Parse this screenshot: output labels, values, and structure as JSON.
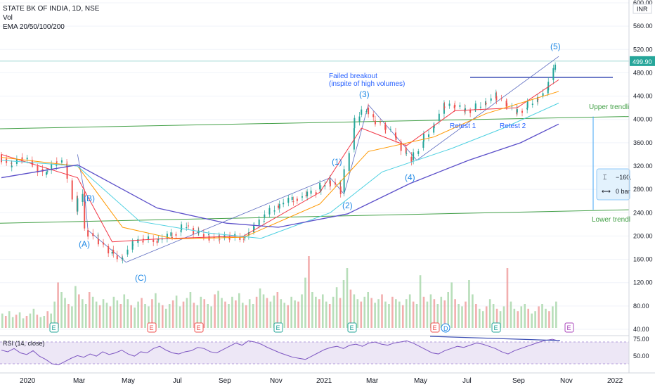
{
  "legend": {
    "title": "STATE BK OF INDIA, 1D, NSE",
    "vol": "Vol",
    "ema": "EMA 20/50/100/200"
  },
  "currency": "INR",
  "rsi_label": "RSI (14, close)",
  "measure_box": {
    "value": "−160.",
    "bars": "0 bar"
  },
  "chart_data": {
    "type": "candlestick",
    "ylim": [
      30,
      608
    ],
    "price_ticks": [
      40,
      80,
      120,
      160,
      200,
      240,
      280,
      320,
      360,
      400,
      440,
      480,
      520,
      560,
      600
    ],
    "price_tick_labels": [
      "40.00",
      "80.00",
      "120.00",
      "160.00",
      "200.00",
      "240.00",
      "280.00",
      "320.00",
      "360.00",
      "400.00",
      "440.00",
      "480.00",
      "520.00",
      "560.00",
      "600.00"
    ],
    "last_price": "499.90",
    "rsi_ticks": [
      "75.00",
      "50.00"
    ],
    "x_ticks": [
      "2020",
      "Mar",
      "May",
      "Jul",
      "Sep",
      "Nov",
      "2021",
      "Mar",
      "May",
      "Jul",
      "Sep",
      "Nov",
      "2022"
    ],
    "close_series": [
      {
        "t": 0,
        "v": 340
      },
      {
        "t": 3,
        "v": 318
      },
      {
        "t": 6,
        "v": 335
      },
      {
        "t": 9,
        "v": 325
      },
      {
        "t": 13,
        "v": 305
      },
      {
        "t": 16,
        "v": 328
      },
      {
        "t": 19,
        "v": 322
      },
      {
        "t": 22,
        "v": 242
      },
      {
        "t": 24,
        "v": 275
      },
      {
        "t": 25,
        "v": 210
      },
      {
        "t": 28,
        "v": 195
      },
      {
        "t": 32,
        "v": 170
      },
      {
        "t": 35,
        "v": 160
      },
      {
        "t": 38,
        "v": 185
      },
      {
        "t": 41,
        "v": 195
      },
      {
        "t": 45,
        "v": 192
      },
      {
        "t": 49,
        "v": 200
      },
      {
        "t": 52,
        "v": 210
      },
      {
        "t": 54,
        "v": 218
      },
      {
        "t": 57,
        "v": 205
      },
      {
        "t": 60,
        "v": 200
      },
      {
        "t": 63,
        "v": 195
      },
      {
        "t": 66,
        "v": 200
      },
      {
        "t": 70,
        "v": 195
      },
      {
        "t": 73,
        "v": 212
      },
      {
        "t": 76,
        "v": 232
      },
      {
        "t": 80,
        "v": 252
      },
      {
        "t": 84,
        "v": 262
      },
      {
        "t": 88,
        "v": 270
      },
      {
        "t": 92,
        "v": 280
      },
      {
        "t": 95,
        "v": 295
      },
      {
        "t": 98,
        "v": 285
      },
      {
        "t": 99,
        "v": 275
      },
      {
        "t": 102,
        "v": 385
      },
      {
        "t": 104,
        "v": 408
      },
      {
        "t": 106,
        "v": 420
      },
      {
        "t": 108,
        "v": 398
      },
      {
        "t": 111,
        "v": 388
      },
      {
        "t": 114,
        "v": 372
      },
      {
        "t": 117,
        "v": 342
      },
      {
        "t": 119,
        "v": 330
      },
      {
        "t": 122,
        "v": 362
      },
      {
        "t": 125,
        "v": 385
      },
      {
        "t": 128,
        "v": 422
      },
      {
        "t": 131,
        "v": 425
      },
      {
        "t": 134,
        "v": 415
      },
      {
        "t": 137,
        "v": 418
      },
      {
        "t": 140,
        "v": 428
      },
      {
        "t": 143,
        "v": 440
      },
      {
        "t": 146,
        "v": 428
      },
      {
        "t": 149,
        "v": 412
      },
      {
        "t": 152,
        "v": 420
      },
      {
        "t": 155,
        "v": 435
      },
      {
        "t": 158,
        "v": 450
      },
      {
        "t": 160,
        "v": 485
      },
      {
        "t": 161,
        "v": 500
      }
    ],
    "ema": [
      {
        "name": "EMA 20",
        "color": "#f23645",
        "points": [
          [
            0,
            340
          ],
          [
            22,
            300
          ],
          [
            32,
            190
          ],
          [
            45,
            195
          ],
          [
            70,
            200
          ],
          [
            92,
            275
          ],
          [
            104,
            385
          ],
          [
            117,
            355
          ],
          [
            131,
            415
          ],
          [
            149,
            420
          ],
          [
            161,
            468
          ]
        ]
      },
      {
        "name": "EMA 50",
        "color": "#ff9800",
        "points": [
          [
            0,
            335
          ],
          [
            22,
            320
          ],
          [
            35,
            215
          ],
          [
            50,
            195
          ],
          [
            70,
            198
          ],
          [
            92,
            255
          ],
          [
            106,
            345
          ],
          [
            125,
            370
          ],
          [
            140,
            410
          ],
          [
            161,
            448
          ]
        ]
      },
      {
        "name": "EMA 100",
        "color": "#4dd0e1",
        "points": [
          [
            0,
            330
          ],
          [
            22,
            320
          ],
          [
            40,
            225
          ],
          [
            60,
            205
          ],
          [
            75,
            196
          ],
          [
            95,
            240
          ],
          [
            110,
            310
          ],
          [
            130,
            350
          ],
          [
            145,
            385
          ],
          [
            161,
            428
          ]
        ]
      },
      {
        "name": "EMA 200",
        "color": "#5b4fc9",
        "points": [
          [
            0,
            300
          ],
          [
            22,
            322
          ],
          [
            45,
            248
          ],
          [
            65,
            222
          ],
          [
            80,
            215
          ],
          [
            100,
            238
          ],
          [
            118,
            290
          ],
          [
            135,
            330
          ],
          [
            150,
            360
          ],
          [
            161,
            392
          ]
        ]
      }
    ],
    "volume": [
      12,
      10,
      14,
      9,
      11,
      13,
      8,
      10,
      12,
      16,
      11,
      9,
      10,
      14,
      12,
      22,
      38,
      30,
      25,
      20,
      18,
      35,
      28,
      24,
      20,
      30,
      26,
      22,
      19,
      24,
      21,
      18,
      26,
      23,
      20,
      28,
      24,
      19,
      17,
      22,
      25,
      20,
      18,
      24,
      29,
      21,
      19,
      16,
      20,
      23,
      27,
      18,
      22,
      25,
      30,
      21,
      19,
      26,
      24,
      20,
      18,
      28,
      31,
      25,
      22,
      20,
      26,
      23,
      29,
      21,
      19,
      24,
      20,
      26,
      33,
      28,
      25,
      22,
      27,
      30,
      24,
      21,
      19,
      26,
      23,
      22,
      28,
      42,
      60,
      30,
      26,
      24,
      28,
      22,
      20,
      26,
      34,
      25,
      40,
      50,
      32,
      28,
      24,
      22,
      26,
      30,
      25,
      21,
      24,
      28,
      22,
      20,
      26,
      24,
      22,
      19,
      24,
      28,
      22,
      20,
      44,
      26,
      22,
      28,
      24,
      20,
      26,
      23,
      30,
      38,
      24,
      20,
      18,
      22,
      40,
      28,
      20,
      16,
      14,
      18,
      24,
      20,
      16,
      14,
      18,
      50,
      22,
      16,
      14,
      18,
      20,
      16,
      12,
      14,
      18,
      20,
      16,
      14,
      18,
      22
    ],
    "rsi": [
      55,
      52,
      58,
      50,
      47,
      54,
      44,
      38,
      30,
      28,
      34,
      40,
      45,
      42,
      48,
      44,
      52,
      47,
      50,
      55,
      48,
      44,
      52,
      50,
      58,
      62,
      55,
      50,
      48,
      52,
      54,
      60,
      58,
      52,
      50,
      56,
      62,
      68,
      64,
      72,
      70,
      66,
      60,
      55,
      50,
      46,
      42,
      40,
      38,
      44,
      50,
      56,
      60,
      62,
      58,
      64,
      66,
      62,
      68,
      70,
      66,
      64,
      68,
      70,
      72,
      68,
      62,
      56,
      50,
      48,
      54,
      58,
      62,
      60,
      64,
      68,
      66,
      62,
      58,
      52,
      48,
      54,
      58,
      62,
      66,
      70,
      73,
      75,
      72
    ],
    "annotations": [
      {
        "id": "A",
        "label": "(A)"
      },
      {
        "id": "B",
        "label": "(B)"
      },
      {
        "id": "C",
        "label": "(C)"
      },
      {
        "id": "w1",
        "label": "(1)"
      },
      {
        "id": "w2",
        "label": "(2)"
      },
      {
        "id": "w3",
        "label": "(3)"
      },
      {
        "id": "w4",
        "label": "(4)"
      },
      {
        "id": "w5",
        "label": "(5)"
      },
      {
        "id": "failed",
        "label": "Failed breakout"
      },
      {
        "id": "failed2",
        "label": "(inspite of high volumes)"
      },
      {
        "id": "retest1",
        "label": "Retest 1"
      },
      {
        "id": "retest2",
        "label": "Retest 2"
      },
      {
        "id": "upper",
        "label": "Upper trendli"
      },
      {
        "id": "lower",
        "label": "Lower trendl"
      }
    ],
    "event_markers": [
      "E",
      "E",
      "E",
      "E",
      "E",
      "E",
      "D",
      "E",
      "E"
    ],
    "colors": {
      "up": "#26a69a",
      "down": "#ef5350",
      "trend": "#43a047",
      "line": "#3f51b5",
      "annotation": "#2962ff",
      "rsi": "#7e57c2",
      "rsi_band": "#ede7f6",
      "last": "#26a69a"
    }
  }
}
